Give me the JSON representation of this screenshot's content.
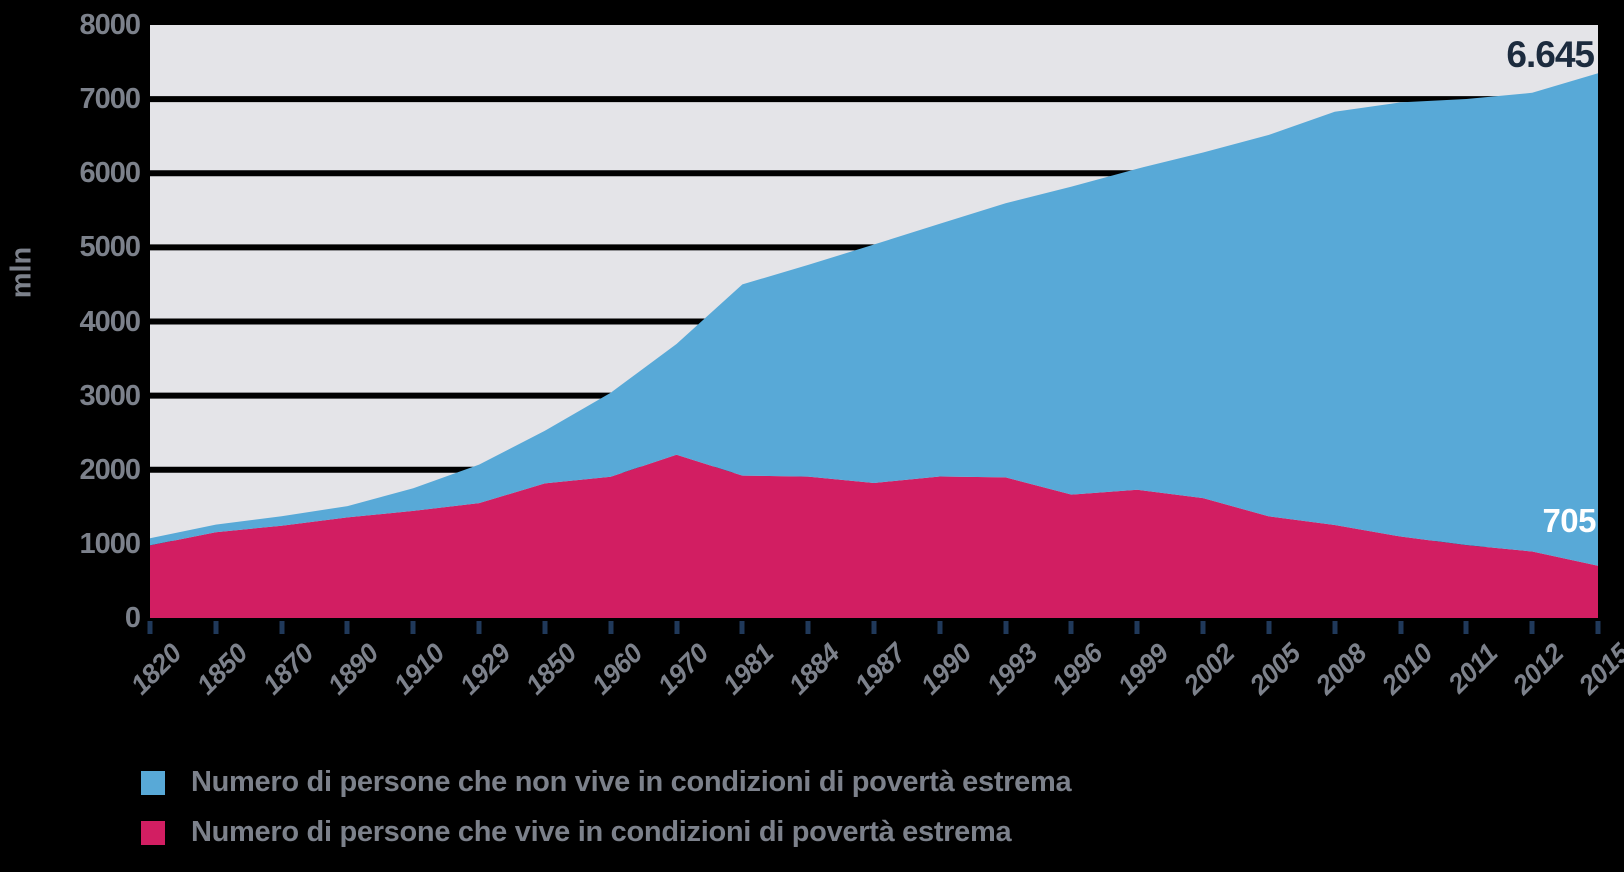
{
  "chart_data": {
    "type": "area",
    "stacked": true,
    "title": "",
    "xlabel": "",
    "ylabel": "mln",
    "unit": "mln",
    "ylim": [
      0,
      8000
    ],
    "yticks": [
      0,
      1000,
      2000,
      3000,
      4000,
      5000,
      6000,
      7000,
      8000
    ],
    "grid": "horizontal",
    "gridline_color": "#000000",
    "plot_background": "#e4e4e8",
    "legend_position": "bottom-left",
    "categories": [
      "1820",
      "1850",
      "1870",
      "1890",
      "1910",
      "1929",
      "1850",
      "1960",
      "1970",
      "1981",
      "1884",
      "1987",
      "1990",
      "1993",
      "1996",
      "1999",
      "2002",
      "2005",
      "2008",
      "2010",
      "2011",
      "2012",
      "2015"
    ],
    "series": [
      {
        "name": "Numero di persone che vive in condizioni di povertà estrema",
        "color": "#d21e62",
        "values": [
          980,
          1158,
          1245,
          1357,
          1445,
          1550,
          1816,
          1906,
          2203,
          1921,
          1908,
          1821,
          1909,
          1897,
          1665,
          1730,
          1617,
          1371,
          1254,
          1100,
          983,
          897,
          705
        ]
      },
      {
        "name": "Numero di persone che non vive in condizioni di povertà estrema",
        "color": "#58a9d7",
        "values": [
          95,
          102,
          128,
          153,
          305,
          520,
          709,
          1133,
          1493,
          2580,
          2855,
          3218,
          3411,
          3699,
          4155,
          4332,
          4663,
          5146,
          5576,
          5856,
          6019,
          6189,
          6645
        ]
      }
    ],
    "annotations": [
      {
        "text": "6.645",
        "refers_to": "non-poverty series endpoint 2015",
        "color": "#1c2b3e"
      },
      {
        "text": "705",
        "refers_to": "poverty series endpoint 2015",
        "color": "#ffffff"
      }
    ]
  },
  "axes": {
    "y_unit_label": "mln",
    "y_tick_color": "#7c818b",
    "x_tick_mark_color": "#20395a"
  },
  "legend": {
    "items": [
      {
        "label": "Numero di persone che non vive in condizioni di povertà estrema",
        "color": "#58a9d7"
      },
      {
        "label": "Numero di persone che vive in condizioni di povertà estrema",
        "color": "#d21e62"
      }
    ]
  },
  "colors": {
    "page_background": "#000000",
    "plot_background": "#e4e4e8",
    "axis_text": "#7c818b",
    "annotation_navy": "#1c2b3e",
    "annotation_white": "#ffffff"
  }
}
